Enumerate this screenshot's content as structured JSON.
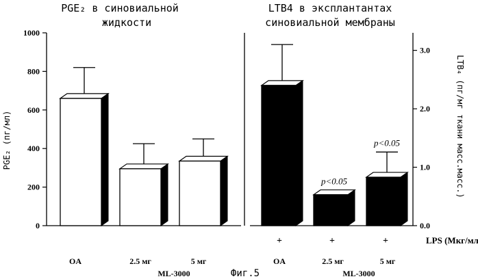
{
  "figure_label": "Фиг.5",
  "chart_data": [
    {
      "type": "bar",
      "title_lines": [
        "PGE₂ в синовиальной",
        "жидкости"
      ],
      "ylabel": "PGE₂ (пг/мл)",
      "ylim": [
        0,
        1000
      ],
      "yticks": [
        0,
        200,
        400,
        600,
        800,
        1000
      ],
      "ytick_labels": [
        "0",
        "200",
        "400",
        "600",
        "800",
        "1000"
      ],
      "categories": [
        "OA",
        "2.5 мг",
        "5 мг"
      ],
      "group_label": "ML-3000",
      "values": [
        660,
        295,
        335
      ],
      "error_upper": [
        820,
        425,
        450
      ],
      "bar_color": "#ffffff",
      "bar_style": "3d"
    },
    {
      "type": "bar",
      "title_lines": [
        "LTB4 в эксплантантах",
        "синовиальной мембраны"
      ],
      "ylabel": "LTB₄ (пг/мг ткани масс.масс.)",
      "ylim": [
        0,
        3.3
      ],
      "yticks": [
        0,
        1.0,
        2.0,
        3.0
      ],
      "ytick_labels": [
        "0.0",
        "1.0",
        "2.0",
        "3.0"
      ],
      "categories": [
        "OA",
        "2.5 мг",
        "5 мг"
      ],
      "group_label": "ML-3000",
      "values": [
        2.4,
        0.53,
        0.83
      ],
      "error_upper": [
        3.1,
        0.6,
        1.26
      ],
      "annotations": [
        "",
        "p<0.05",
        "p<0.05"
      ],
      "lps_row_label": "LPS (Мкг/мл)",
      "lps_marks": [
        "+",
        "+",
        "+"
      ],
      "bar_color": "#000000",
      "bar_style": "3d"
    }
  ]
}
